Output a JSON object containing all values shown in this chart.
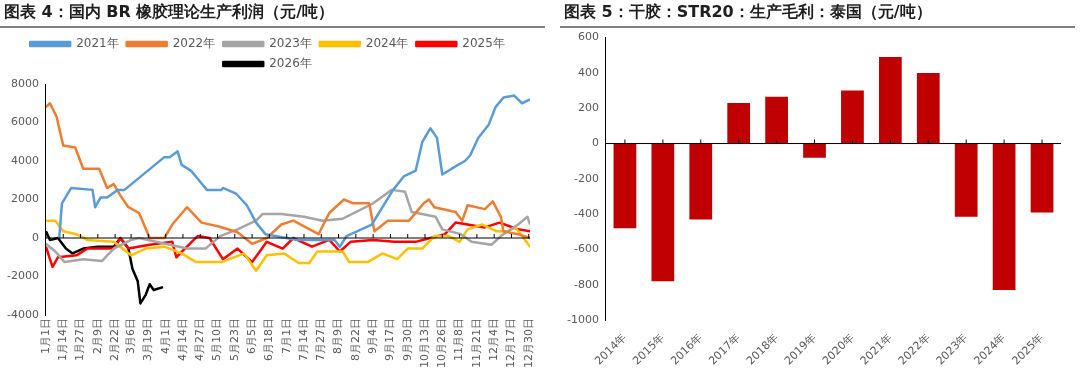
{
  "chart_data": [
    {
      "type": "line",
      "title": "图表 4：国内 BR 橡胶理论生产利润（元/吨）",
      "legend": "top",
      "marker": "none",
      "xlim": [
        "--01-01",
        "--12-31"
      ],
      "ylim": [
        -4000,
        8000
      ],
      "yticks": [
        -4000,
        -2000,
        0,
        2000,
        4000,
        6000,
        8000
      ],
      "xticks": [
        {
          "value": "--01-01",
          "label": "1月1日"
        },
        {
          "value": "--01-14",
          "label": "1月14日"
        },
        {
          "value": "--01-27",
          "label": "1月27日"
        },
        {
          "value": "--02-09",
          "label": "2月9日"
        },
        {
          "value": "--02-22",
          "label": "2月22日"
        },
        {
          "value": "--03-06",
          "label": "3月6日"
        },
        {
          "value": "--03-19",
          "label": "3月19日"
        },
        {
          "value": "--04-01",
          "label": "4月1日"
        },
        {
          "value": "--04-14",
          "label": "4月14日"
        },
        {
          "value": "--04-27",
          "label": "4月27日"
        },
        {
          "value": "--05-10",
          "label": "5月10日"
        },
        {
          "value": "--05-23",
          "label": "5月23日"
        },
        {
          "value": "--06-05",
          "label": "6月5日"
        },
        {
          "value": "--06-18",
          "label": "6月18日"
        },
        {
          "value": "--07-01",
          "label": "7月1日"
        },
        {
          "value": "--07-14",
          "label": "7月14日"
        },
        {
          "value": "--07-27",
          "label": "7月27日"
        },
        {
          "value": "--08-09",
          "label": "8月9日"
        },
        {
          "value": "--08-22",
          "label": "8月22日"
        },
        {
          "value": "--09-04",
          "label": "9月4日"
        },
        {
          "value": "--09-17",
          "label": "9月17日"
        },
        {
          "value": "--09-30",
          "label": "9月30日"
        },
        {
          "value": "--10-13",
          "label": "10月13日"
        },
        {
          "value": "--10-26",
          "label": "10月26日"
        },
        {
          "value": "--11-08",
          "label": "11月8日"
        },
        {
          "value": "--11-21",
          "label": "11月21日"
        },
        {
          "value": "--12-04",
          "label": "12月4日"
        },
        {
          "value": "--12-17",
          "label": "12月17日"
        },
        {
          "value": "--12-30",
          "label": "12月30日"
        }
      ],
      "series": [
        {
          "name": "2021年",
          "color": "#5b9bd5",
          "x": [
            "--01-11",
            "--01-13",
            "--01-20",
            "--02-05",
            "--02-07",
            "--02-11",
            "--02-16",
            "--02-24",
            "--03-01",
            "--03-31",
            "--04-04",
            "--04-10",
            "--04-13",
            "--04-20",
            "--04-26",
            "--05-02",
            "--05-13",
            "--05-14",
            "--05-24",
            "--06-01",
            "--06-08",
            "--06-15",
            "--07-09",
            "--08-06",
            "--08-10",
            "--08-15",
            "--09-03",
            "--09-11",
            "--09-19",
            "--09-27",
            "--10-06",
            "--10-11",
            "--10-17",
            "--10-22",
            "--10-26",
            "--11-02",
            "--11-12",
            "--11-16",
            "--11-22",
            "--11-30",
            "--12-05",
            "--12-11",
            "--12-19",
            "--12-25",
            "--12-31"
          ],
          "values": [
            0,
            1800,
            2600,
            2500,
            1600,
            2100,
            2100,
            2500,
            2500,
            4200,
            4200,
            4500,
            3800,
            3500,
            3000,
            2500,
            2500,
            2600,
            2300,
            1700,
            800,
            200,
            -100,
            -100,
            -450,
            100,
            700,
            1600,
            2500,
            3200,
            3500,
            5000,
            5700,
            5200,
            3300,
            3600,
            4000,
            4300,
            5200,
            5900,
            6800,
            7300,
            7400,
            7000,
            7200
          ]
        },
        {
          "name": "2022年",
          "color": "#ed7d31",
          "x": [
            "--01-01",
            "--01-04",
            "--01-09",
            "--01-14",
            "--01-23",
            "--01-29",
            "--02-10",
            "--02-16",
            "--02-21",
            "--02-26",
            "--03-04",
            "--03-12",
            "--03-20",
            "--03-31",
            "--04-06",
            "--04-17",
            "--04-28",
            "--05-11",
            "--05-25",
            "--06-05",
            "--06-16",
            "--06-27",
            "--07-06",
            "--07-25",
            "--08-02",
            "--08-13",
            "--08-20",
            "--09-01",
            "--09-05",
            "--09-15",
            "--10-01",
            "--10-12",
            "--10-16",
            "--10-20",
            "--11-05",
            "--11-10",
            "--11-14",
            "--11-27",
            "--12-03",
            "--12-09",
            "--12-11",
            "--12-22",
            "--12-31"
          ],
          "values": [
            6800,
            7000,
            6300,
            4800,
            4700,
            3600,
            3600,
            2600,
            2800,
            2200,
            1600,
            1300,
            0,
            0,
            700,
            1600,
            800,
            600,
            300,
            -300,
            0,
            700,
            900,
            200,
            1300,
            2000,
            1800,
            1800,
            350,
            900,
            900,
            1800,
            2000,
            1600,
            1350,
            900,
            1700,
            1500,
            1900,
            1100,
            350,
            200,
            0
          ]
        },
        {
          "name": "2023年",
          "color": "#a5a5a5",
          "x": [
            "--01-01",
            "--01-08",
            "--01-15",
            "--01-29",
            "--02-12",
            "--02-21",
            "--03-06",
            "--03-12",
            "--04-17",
            "--05-01",
            "--05-12",
            "--05-25",
            "--06-08",
            "--06-13",
            "--06-27",
            "--07-14",
            "--07-28",
            "--08-12",
            "--09-04",
            "--09-18",
            "--09-28",
            "--10-03",
            "--10-21",
            "--10-26",
            "--11-09",
            "--11-17",
            "--12-02",
            "--12-09",
            "--12-22",
            "--12-29",
            "--12-31"
          ],
          "values": [
            -300,
            -700,
            -1250,
            -1100,
            -1200,
            -550,
            -100,
            0,
            -550,
            -550,
            100,
            450,
            900,
            1250,
            1250,
            1100,
            900,
            1000,
            1800,
            2500,
            2400,
            1350,
            1100,
            450,
            200,
            -200,
            -350,
            100,
            700,
            1100,
            700
          ]
        },
        {
          "name": "2024年",
          "color": "#ffc000",
          "x": [
            "--01-01",
            "--01-08",
            "--01-14",
            "--01-24",
            "--02-01",
            "--02-21",
            "--03-06",
            "--03-17",
            "--03-31",
            "--04-13",
            "--04-24",
            "--05-13",
            "--05-30",
            "--06-08",
            "--06-16",
            "--06-29",
            "--07-10",
            "--07-18",
            "--07-24",
            "--08-12",
            "--08-17",
            "--08-31",
            "--09-11",
            "--09-22",
            "--09-30",
            "--10-11",
            "--10-20",
            "--10-31",
            "--11-08",
            "--11-14",
            "--11-25",
            "--12-06",
            "--12-14",
            "--12-20",
            "--12-31"
          ],
          "values": [
            900,
            900,
            350,
            200,
            -100,
            -200,
            -900,
            -550,
            -450,
            -800,
            -1250,
            -1250,
            -800,
            -1700,
            -900,
            -800,
            -1300,
            -1300,
            -700,
            -700,
            -1250,
            -1250,
            -800,
            -1100,
            -550,
            -550,
            100,
            100,
            -200,
            450,
            700,
            350,
            350,
            550,
            -450
          ]
        },
        {
          "name": "2025年",
          "color": "#ff0000",
          "x": [
            "--01-01",
            "--01-04",
            "--01-06",
            "--01-10",
            "--01-24",
            "--02-01",
            "--02-21",
            "--02-26",
            "--03-04",
            "--03-20",
            "--04-06",
            "--04-09",
            "--04-17",
            "--04-25",
            "--05-04",
            "--05-14",
            "--05-25",
            "--06-05",
            "--06-16",
            "--06-28",
            "--07-06",
            "--07-20",
            "--08-02",
            "--08-10",
            "--08-18",
            "--09-04",
            "--09-20",
            "--10-06",
            "--10-17",
            "--10-28",
            "--11-05",
            "--11-14",
            "--11-27",
            "--12-08",
            "--12-22",
            "--12-31"
          ],
          "values": [
            -450,
            -1100,
            -1500,
            -1000,
            -900,
            -550,
            -550,
            0,
            -550,
            -350,
            -200,
            -1000,
            -450,
            100,
            0,
            -1100,
            -550,
            -1250,
            -200,
            -550,
            0,
            -450,
            -100,
            -700,
            -200,
            -100,
            -200,
            -200,
            0,
            200,
            800,
            700,
            550,
            800,
            450,
            350
          ]
        },
        {
          "name": "2026年",
          "color": "#000000",
          "x": [
            "--01-01",
            "--01-04",
            "--01-10",
            "--01-16",
            "--01-21",
            "--01-29",
            "--02-09",
            "--02-21",
            "--02-26",
            "--03-04",
            "--03-07",
            "--03-11",
            "--03-13",
            "--03-17",
            "--03-20",
            "--03-23",
            "--03-30"
          ],
          "values": [
            350,
            -100,
            0,
            -550,
            -800,
            -550,
            -450,
            -450,
            0,
            -550,
            -1600,
            -2250,
            -3400,
            -2950,
            -2400,
            -2700,
            -2550
          ]
        }
      ]
    },
    {
      "type": "bar",
      "title": "图表 5：干胶：STR20：生产毛利：泰国（元/吨）",
      "categories": [
        "2014年",
        "2015年",
        "2016年",
        "2017年",
        "2018年",
        "2019年",
        "2020年",
        "2021年",
        "2022年",
        "2023年",
        "2024年",
        "2025年"
      ],
      "values": [
        -480,
        -780,
        -430,
        230,
        265,
        -80,
        300,
        490,
        400,
        -415,
        -830,
        -390
      ],
      "color": "#c00000",
      "ylim": [
        -1000,
        600
      ],
      "yticks": [
        -1000,
        -800,
        -600,
        -400,
        -200,
        0,
        200,
        400,
        600
      ]
    }
  ]
}
